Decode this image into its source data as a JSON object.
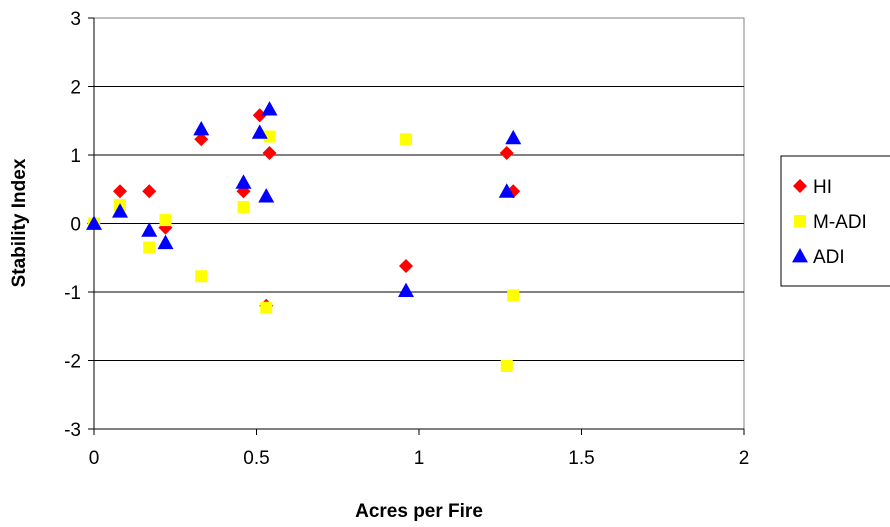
{
  "chart_data": {
    "type": "scatter",
    "title": "",
    "xlabel": "Acres per Fire",
    "ylabel": "Stability Index",
    "xlim": [
      0,
      2
    ],
    "ylim": [
      -3,
      3
    ],
    "xticks": [
      "0",
      "0.5",
      "1",
      "1.5",
      "2"
    ],
    "yticks": [
      "3",
      "2",
      "1",
      "0",
      "-1",
      "-2",
      "-3"
    ],
    "grid": "horizontal",
    "legend": "right",
    "series": [
      {
        "name": "HI",
        "marker": "diamond",
        "color": "#ff0000",
        "points": [
          [
            0.0,
            0.0
          ],
          [
            0.08,
            0.47
          ],
          [
            0.17,
            0.47
          ],
          [
            0.22,
            -0.06
          ],
          [
            0.33,
            1.23
          ],
          [
            0.46,
            0.47
          ],
          [
            0.51,
            1.58
          ],
          [
            0.53,
            -1.2
          ],
          [
            0.54,
            1.03
          ],
          [
            0.96,
            -0.62
          ],
          [
            1.27,
            1.03
          ],
          [
            1.29,
            0.47
          ]
        ]
      },
      {
        "name": "M-ADI",
        "marker": "square",
        "color": "#ffff00",
        "points": [
          [
            0.0,
            0.0
          ],
          [
            0.08,
            0.27
          ],
          [
            0.17,
            -0.35
          ],
          [
            0.22,
            0.05
          ],
          [
            0.33,
            -0.77
          ],
          [
            0.46,
            0.24
          ],
          [
            0.53,
            -1.23
          ],
          [
            0.54,
            1.27
          ],
          [
            0.96,
            1.23
          ],
          [
            1.27,
            -2.08
          ],
          [
            1.29,
            -1.05
          ]
        ]
      },
      {
        "name": "ADI",
        "marker": "triangle",
        "color": "#0000ff",
        "points": [
          [
            0.0,
            0.0
          ],
          [
            0.08,
            0.18
          ],
          [
            0.17,
            -0.1
          ],
          [
            0.22,
            -0.28
          ],
          [
            0.33,
            1.38
          ],
          [
            0.46,
            0.6
          ],
          [
            0.51,
            1.33
          ],
          [
            0.53,
            0.4
          ],
          [
            0.54,
            1.67
          ],
          [
            0.96,
            -0.98
          ],
          [
            1.27,
            0.47
          ],
          [
            1.29,
            1.25
          ]
        ]
      }
    ]
  }
}
